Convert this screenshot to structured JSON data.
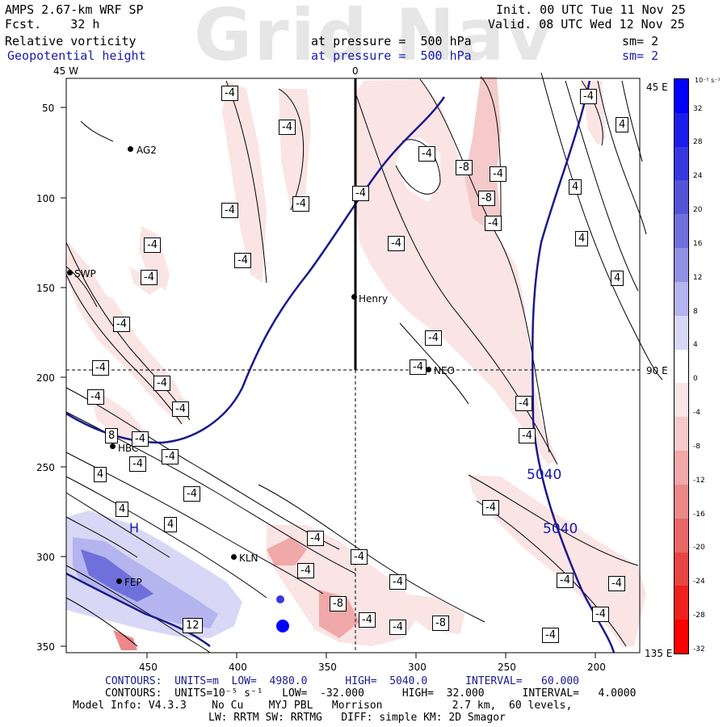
{
  "header": {
    "model": "AMPS 2.67-km WRF SP",
    "fcst": "Fcst.    32 h",
    "init": "Init. 00 UTC Tue 11 Nov 25",
    "valid": "Valid. 08 UTC Wed 12 Nov 25",
    "watermark": "Grid Nav",
    "field1": "Relative vorticity",
    "field1_level": "at pressure =  500 hPa",
    "field1_sm": "sm= 2",
    "field2": "Geopotential height",
    "field2_level": "at pressure =  500 hPa",
    "field2_sm": "sm= 2"
  },
  "axes": {
    "x_ticks": [
      "450",
      "400",
      "350",
      "300",
      "250",
      "200"
    ],
    "y_ticks": [
      "50",
      "100",
      "150",
      "200",
      "250",
      "300",
      "350"
    ],
    "lon_labels": {
      "top_left": "45 W",
      "top_center": "0",
      "right_top": "45 E",
      "right_mid": "90 E",
      "right_bottom": "135 E"
    }
  },
  "stations": [
    {
      "name": "AG2"
    },
    {
      "name": "SWP"
    },
    {
      "name": "Henry"
    },
    {
      "name": "NEO"
    },
    {
      "name": "HBC"
    },
    {
      "name": "KLN"
    },
    {
      "name": "FEP"
    }
  ],
  "contour_labels": {
    "height": [
      "5040",
      "5040"
    ],
    "high_marker": "H",
    "vort_small": [
      "-4",
      "-8",
      "4",
      "8",
      "12"
    ]
  },
  "colorbar": {
    "unit": "10⁻⁵ s⁻¹",
    "labels": [
      "32",
      "28",
      "24",
      "20",
      "16",
      "12",
      "8",
      "4",
      "0",
      "-4",
      "-8",
      "-12",
      "-16",
      "-20",
      "-24",
      "-28",
      "-32"
    ],
    "colors": [
      "#0000ff",
      "#1c1ced",
      "#3838e0",
      "#5454d6",
      "#7070dc",
      "#9090e4",
      "#b4b4ee",
      "#d8d8f6",
      "#ffffff",
      "#fbe4e4",
      "#f6caca",
      "#f0a8a8",
      "#ec8888",
      "#e86666",
      "#e84444",
      "#f02020",
      "#ff0000"
    ]
  },
  "footer": {
    "line1": "CONTOURS:  UNITS=m  LOW=  4980.0      HIGH=  5040.0      INTERVAL=   60.000",
    "line2": "CONTOURS:  UNITS=10⁻⁵ s⁻¹   LOW=  -32.000      HIGH=  32.000      INTERVAL=   4.0000",
    "line3": "Model Info: V4.3.3    No Cu    MYJ PBL   Morrison           2.7 km,  60 levels,",
    "line4": "LW: RRTM SW: RRTMG   DIFF: simple KM: 2D Smagor"
  }
}
